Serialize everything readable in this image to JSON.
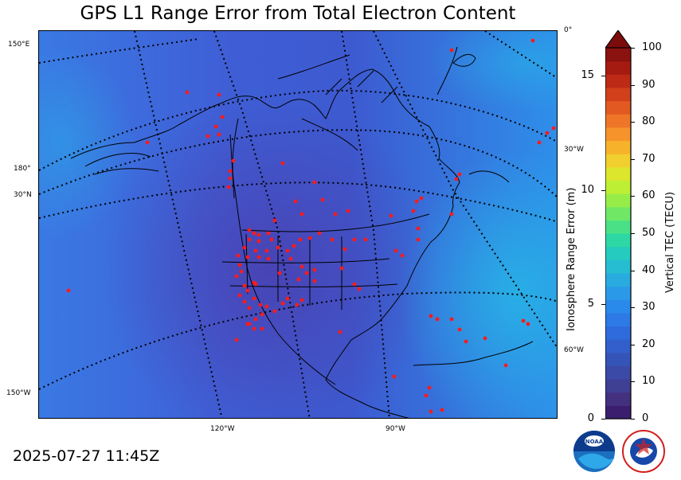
{
  "title": "GPS L1 Range Error from Total Electron Content",
  "timestamp": "2025-07-27 11:45Z",
  "graticule": {
    "left_labels": [
      "150°E",
      "180°",
      "30°N",
      "150°W"
    ],
    "right_labels": [
      "0°",
      "30°W",
      "60°W"
    ],
    "bottom_labels": [
      "120°W",
      "90°W"
    ]
  },
  "colorbar": {
    "label_right": "Vertical TEC (TECU)",
    "label_left": "Ionosphere Range Error (m)",
    "tec_ticks": [
      "0",
      "10",
      "20",
      "30",
      "40",
      "50",
      "60",
      "70",
      "80",
      "90",
      "100"
    ],
    "range_error_ticks": [
      "0",
      "5",
      "10",
      "15"
    ],
    "colors": [
      "#3b1f6e",
      "#43317f",
      "#3f3f94",
      "#3a4aa6",
      "#3554b8",
      "#325fcc",
      "#2f6bdc",
      "#2d7ae6",
      "#2a8aeb",
      "#2a9ae8",
      "#29abe0",
      "#26bcd1",
      "#25cbbf",
      "#2dd8a4",
      "#4ae186",
      "#70e866",
      "#97ed48",
      "#bdef35",
      "#dce62d",
      "#f0cf2e",
      "#f7b22c",
      "#f6942b",
      "#ef7628",
      "#e25a22",
      "#d13f1b",
      "#bd2a15",
      "#a51b12",
      "#8a120f"
    ],
    "extend_color": "#7a0c0c"
  },
  "logos": {
    "noaa": "NOAA",
    "nws": "NATIONAL WEATHER SERVICE"
  },
  "colors": {
    "ocean_base": "#3f6ee0",
    "ocean_light": "#2f95ea",
    "ocean_dark": "#4451c2",
    "station": "#ff1a1a"
  }
}
